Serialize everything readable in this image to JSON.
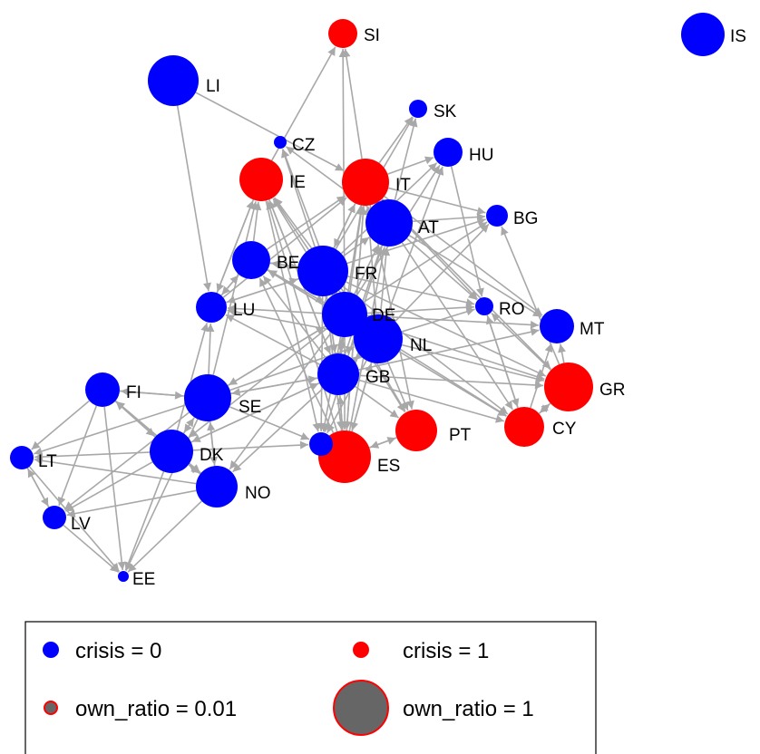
{
  "colors": {
    "crisis_0": "#0000ff",
    "crisis_1": "#ff0000",
    "edge": "#a8a8a8",
    "legend_size_fill": "#666666",
    "legend_size_stroke": "#ff0000"
  },
  "nodes": [
    {
      "id": "IS",
      "label": "IS",
      "crisis": 0
    },
    {
      "id": "SI",
      "label": "SI",
      "crisis": 1
    },
    {
      "id": "LI",
      "label": "LI",
      "crisis": 0
    },
    {
      "id": "SK",
      "label": "SK",
      "crisis": 0
    },
    {
      "id": "CZ",
      "label": "CZ",
      "crisis": 0
    },
    {
      "id": "HU",
      "label": "HU",
      "crisis": 0
    },
    {
      "id": "IE",
      "label": "IE",
      "crisis": 1
    },
    {
      "id": "IT",
      "label": "IT",
      "crisis": 1
    },
    {
      "id": "BG",
      "label": "BG",
      "crisis": 0
    },
    {
      "id": "AT",
      "label": "AT",
      "crisis": 0
    },
    {
      "id": "BE",
      "label": "BE",
      "crisis": 0
    },
    {
      "id": "FR",
      "label": "FR",
      "crisis": 0
    },
    {
      "id": "LU",
      "label": "LU",
      "crisis": 0
    },
    {
      "id": "RO",
      "label": "RO",
      "crisis": 0
    },
    {
      "id": "DE",
      "label": "DE",
      "crisis": 0
    },
    {
      "id": "MT",
      "label": "MT",
      "crisis": 0
    },
    {
      "id": "NL",
      "label": "NL",
      "crisis": 0
    },
    {
      "id": "GB",
      "label": "GB",
      "crisis": 0
    },
    {
      "id": "GR",
      "label": "GR",
      "crisis": 1
    },
    {
      "id": "FI",
      "label": "FI",
      "crisis": 0
    },
    {
      "id": "SE",
      "label": "SE",
      "crisis": 0
    },
    {
      "id": "PT",
      "label": "PT",
      "crisis": 1
    },
    {
      "id": "CY",
      "label": "CY",
      "crisis": 1
    },
    {
      "id": "DK",
      "label": "DK",
      "crisis": 0
    },
    {
      "id": "ES",
      "label": "ES",
      "crisis": 1
    },
    {
      "id": "PL",
      "label": "",
      "crisis": 0
    },
    {
      "id": "LT",
      "label": "LT",
      "crisis": 0
    },
    {
      "id": "NO",
      "label": "NO",
      "crisis": 0
    },
    {
      "id": "LV",
      "label": "LV",
      "crisis": 0
    },
    {
      "id": "EE",
      "label": "EE",
      "crisis": 0
    }
  ],
  "edges": [
    [
      "LI",
      "LU"
    ],
    [
      "LI",
      "IT"
    ],
    [
      "IT",
      "SI"
    ],
    [
      "IE",
      "SI"
    ],
    [
      "DE",
      "SI"
    ],
    [
      "FR",
      "SK"
    ],
    [
      "IT",
      "SK"
    ],
    [
      "AT",
      "SK"
    ],
    [
      "FR",
      "HU"
    ],
    [
      "IT",
      "HU"
    ],
    [
      "DE",
      "HU"
    ],
    [
      "NL",
      "HU"
    ],
    [
      "FR",
      "CZ"
    ],
    [
      "DE",
      "CZ"
    ],
    [
      "AT",
      "CZ"
    ],
    [
      "FR",
      "IE"
    ],
    [
      "DE",
      "IE"
    ],
    [
      "NL",
      "IE"
    ],
    [
      "GB",
      "IE"
    ],
    [
      "BE",
      "IE"
    ],
    [
      "LU",
      "IE"
    ],
    [
      "ES",
      "IE"
    ],
    [
      "SE",
      "IE"
    ],
    [
      "FR",
      "IT"
    ],
    [
      "DE",
      "IT"
    ],
    [
      "NL",
      "IT"
    ],
    [
      "GB",
      "IT"
    ],
    [
      "BE",
      "IT"
    ],
    [
      "AT",
      "IT"
    ],
    [
      "ES",
      "IT"
    ],
    [
      "LU",
      "IT"
    ],
    [
      "AT",
      "BG"
    ],
    [
      "DE",
      "BG"
    ],
    [
      "IT",
      "BG"
    ],
    [
      "NL",
      "BG"
    ],
    [
      "FR",
      "BG"
    ],
    [
      "GR",
      "BG"
    ],
    [
      "DE",
      "AT"
    ],
    [
      "NL",
      "AT"
    ],
    [
      "GB",
      "AT"
    ],
    [
      "FR",
      "AT"
    ],
    [
      "ES",
      "AT"
    ],
    [
      "FR",
      "BE"
    ],
    [
      "NL",
      "BE"
    ],
    [
      "DE",
      "BE"
    ],
    [
      "GB",
      "BE"
    ],
    [
      "LU",
      "BE"
    ],
    [
      "ES",
      "BE"
    ],
    [
      "DE",
      "FR"
    ],
    [
      "GB",
      "FR"
    ],
    [
      "NL",
      "FR"
    ],
    [
      "ES",
      "FR"
    ],
    [
      "IT",
      "FR"
    ],
    [
      "BE",
      "FR"
    ],
    [
      "LU",
      "FR"
    ],
    [
      "FR",
      "LU"
    ],
    [
      "DE",
      "LU"
    ],
    [
      "BE",
      "LU"
    ],
    [
      "SE",
      "LU"
    ],
    [
      "DK",
      "LU"
    ],
    [
      "GB",
      "LU"
    ],
    [
      "NL",
      "LU"
    ],
    [
      "IE",
      "LU"
    ],
    [
      "AT",
      "RO"
    ],
    [
      "NL",
      "RO"
    ],
    [
      "FR",
      "RO"
    ],
    [
      "DE",
      "RO"
    ],
    [
      "GR",
      "RO"
    ],
    [
      "IT",
      "RO"
    ],
    [
      "HU",
      "RO"
    ],
    [
      "CY",
      "RO"
    ],
    [
      "FR",
      "DE"
    ],
    [
      "GB",
      "DE"
    ],
    [
      "NL",
      "DE"
    ],
    [
      "SE",
      "DE"
    ],
    [
      "BE",
      "DE"
    ],
    [
      "GR",
      "MT"
    ],
    [
      "CY",
      "MT"
    ],
    [
      "DE",
      "MT"
    ],
    [
      "GB",
      "MT"
    ],
    [
      "IT",
      "MT"
    ],
    [
      "AT",
      "MT"
    ],
    [
      "DE",
      "NL"
    ],
    [
      "GB",
      "NL"
    ],
    [
      "FR",
      "NL"
    ],
    [
      "BE",
      "NL"
    ],
    [
      "SE",
      "NL"
    ],
    [
      "ES",
      "NL"
    ],
    [
      "DE",
      "GB"
    ],
    [
      "FR",
      "GB"
    ],
    [
      "NL",
      "GB"
    ],
    [
      "SE",
      "GB"
    ],
    [
      "ES",
      "GB"
    ],
    [
      "IE",
      "GB"
    ],
    [
      "DK",
      "GB"
    ],
    [
      "FR",
      "GR"
    ],
    [
      "DE",
      "GR"
    ],
    [
      "CY",
      "GR"
    ],
    [
      "NL",
      "GR"
    ],
    [
      "GB",
      "GR"
    ],
    [
      "IT",
      "GR"
    ],
    [
      "SE",
      "FI"
    ],
    [
      "DK",
      "FI"
    ],
    [
      "NO",
      "FI"
    ],
    [
      "DK",
      "SE"
    ],
    [
      "NO",
      "SE"
    ],
    [
      "FI",
      "SE"
    ],
    [
      "DE",
      "SE"
    ],
    [
      "GB",
      "SE"
    ],
    [
      "ES",
      "PT"
    ],
    [
      "FR",
      "PT"
    ],
    [
      "DE",
      "PT"
    ],
    [
      "GB",
      "PT"
    ],
    [
      "NL",
      "PT"
    ],
    [
      "IT",
      "PT"
    ],
    [
      "GR",
      "CY"
    ],
    [
      "DE",
      "CY"
    ],
    [
      "GB",
      "CY"
    ],
    [
      "FR",
      "CY"
    ],
    [
      "NL",
      "CY"
    ],
    [
      "RO",
      "CY"
    ],
    [
      "AT",
      "CY"
    ],
    [
      "SE",
      "DK"
    ],
    [
      "NO",
      "DK"
    ],
    [
      "DE",
      "DK"
    ],
    [
      "FI",
      "DK"
    ],
    [
      "GB",
      "DK"
    ],
    [
      "DE",
      "ES"
    ],
    [
      "FR",
      "ES"
    ],
    [
      "GB",
      "ES"
    ],
    [
      "NL",
      "ES"
    ],
    [
      "PT",
      "ES"
    ],
    [
      "IT",
      "ES"
    ],
    [
      "DE",
      "PL"
    ],
    [
      "NL",
      "PL"
    ],
    [
      "FR",
      "PL"
    ],
    [
      "SE",
      "PL"
    ],
    [
      "DK",
      "PL"
    ],
    [
      "AT",
      "PL"
    ],
    [
      "IE",
      "PL"
    ],
    [
      "SE",
      "LT"
    ],
    [
      "DK",
      "LT"
    ],
    [
      "FI",
      "LT"
    ],
    [
      "NO",
      "LT"
    ],
    [
      "LV",
      "LT"
    ],
    [
      "SE",
      "NO"
    ],
    [
      "DK",
      "NO"
    ],
    [
      "GB",
      "NO"
    ],
    [
      "DE",
      "NO"
    ],
    [
      "FI",
      "NO"
    ],
    [
      "SE",
      "LV"
    ],
    [
      "DK",
      "LV"
    ],
    [
      "FI",
      "LV"
    ],
    [
      "LT",
      "LV"
    ],
    [
      "NO",
      "LV"
    ],
    [
      "SE",
      "EE"
    ],
    [
      "FI",
      "EE"
    ],
    [
      "DK",
      "EE"
    ],
    [
      "LT",
      "EE"
    ],
    [
      "LV",
      "EE"
    ],
    [
      "NO",
      "EE"
    ]
  ],
  "legend": {
    "crisis0": "crisis = 0",
    "crisis1": "crisis = 1",
    "own_small": "own_ratio = 0.01",
    "own_large": "own_ratio = 1"
  }
}
